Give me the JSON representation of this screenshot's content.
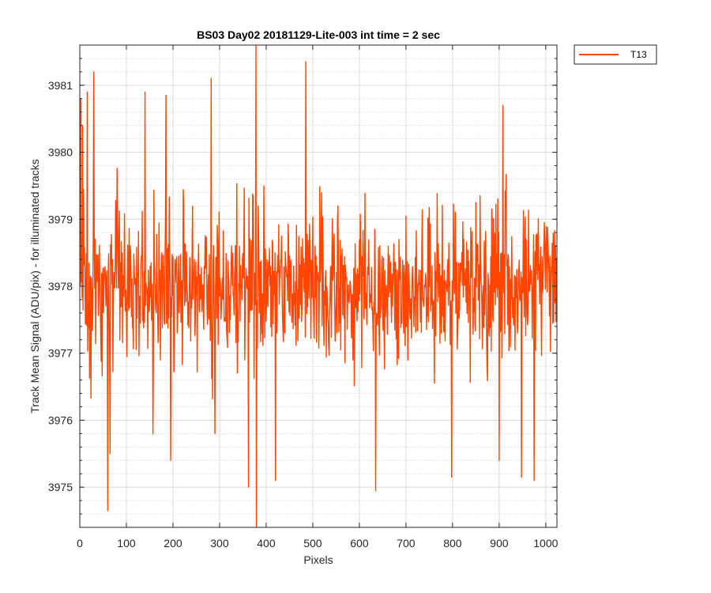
{
  "chart_data": {
    "type": "line",
    "title": "BS03 Day02 20181129-Lite-003 int time = 2 sec",
    "xlabel": "Pixels",
    "ylabel": "Track Mean Signal (ADU/pix) - for illuminated tracks",
    "xlim": [
      0,
      1024
    ],
    "ylim": [
      3974.4,
      3981.6
    ],
    "xticks": [
      0,
      100,
      200,
      300,
      400,
      500,
      600,
      700,
      800,
      900,
      1000
    ],
    "yticks": [
      3975,
      3976,
      3977,
      3978,
      3979,
      3980,
      3981
    ],
    "yminor_step": 0.2,
    "grid": true,
    "minor_grid": true,
    "legend_placement": "outside-top-right",
    "series": [
      {
        "name": "T13",
        "color": "#FF4500",
        "x_range": [
          1,
          1024
        ],
        "mean": 3978,
        "notable_points": [
          {
            "x": 2,
            "y": 3980.8
          },
          {
            "x": 6,
            "y": 3980.4
          },
          {
            "x": 16,
            "y": 3980.9
          },
          {
            "x": 30,
            "y": 3981.2
          },
          {
            "x": 60,
            "y": 3974.65
          },
          {
            "x": 65,
            "y": 3975.5
          },
          {
            "x": 140,
            "y": 3980.9
          },
          {
            "x": 157,
            "y": 3975.8
          },
          {
            "x": 185,
            "y": 3980.85
          },
          {
            "x": 195,
            "y": 3975.4
          },
          {
            "x": 282,
            "y": 3981.1
          },
          {
            "x": 290,
            "y": 3975.8
          },
          {
            "x": 362,
            "y": 3975.0
          },
          {
            "x": 378,
            "y": 3981.6
          },
          {
            "x": 379,
            "y": 3974.4
          },
          {
            "x": 420,
            "y": 3975.1
          },
          {
            "x": 485,
            "y": 3981.35
          },
          {
            "x": 635,
            "y": 3974.95
          },
          {
            "x": 798,
            "y": 3975.15
          },
          {
            "x": 900,
            "y": 3975.4
          },
          {
            "x": 908,
            "y": 3980.7
          },
          {
            "x": 948,
            "y": 3975.15
          },
          {
            "x": 975,
            "y": 3975.1
          }
        ]
      }
    ]
  }
}
